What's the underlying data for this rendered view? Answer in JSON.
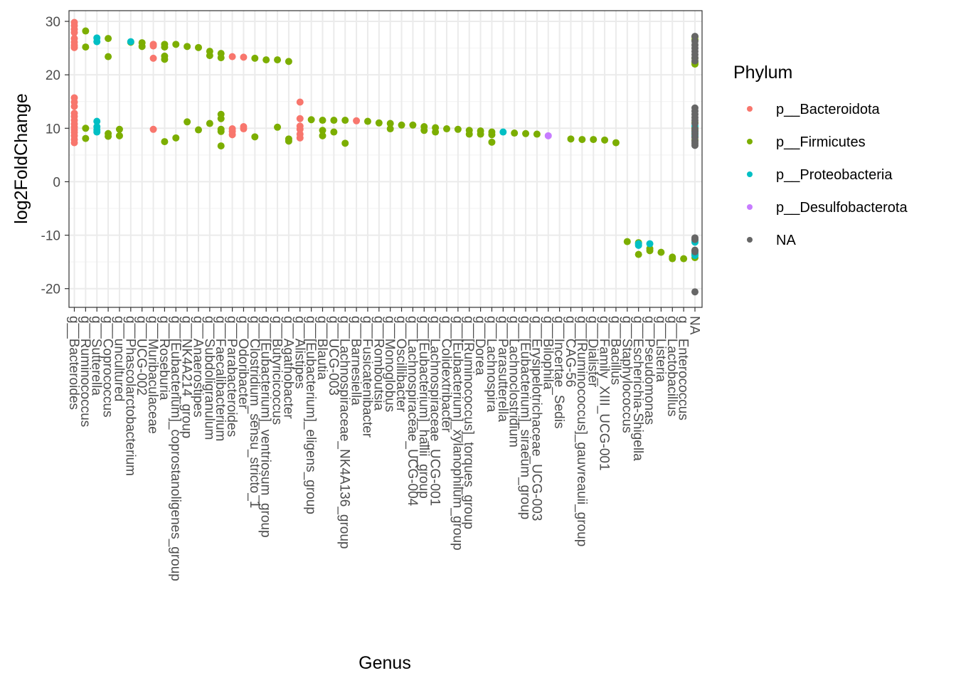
{
  "chart_data": {
    "type": "scatter",
    "xlabel": "Genus",
    "ylabel": "log2FoldChange",
    "ylim": [
      -23.5,
      32
    ],
    "y_ticks": [
      -20,
      -10,
      0,
      10,
      20,
      30
    ],
    "y_tick_labels": [
      "-20",
      "-10",
      "0",
      "10",
      "20",
      "30"
    ],
    "grid": true,
    "legend": {
      "title": "Phylum",
      "position": "right",
      "entries": [
        {
          "label": "p__Bacteroidota",
          "color": "#F8766D"
        },
        {
          "label": "p__Firmicutes",
          "color": "#7CAE00"
        },
        {
          "label": "p__Proteobacteria",
          "color": "#00BFC4"
        },
        {
          "label": "p__Desulfobacterota",
          "color": "#C77CFF"
        },
        {
          "label": "NA",
          "color": "#666666"
        }
      ]
    },
    "categories": [
      "g__Bacteroides",
      "g__Ruminococcus",
      "g__Sutterella",
      "g__Coprococcus",
      "g__uncultured",
      "g__Phascolarctobacterium",
      "g__UCG-002",
      "g__Muribaculaceae",
      "g__Roseburia",
      "g__[Eubacterium]_coprostanoligenes_group",
      "g__NK4A214_group",
      "g__Anaerostipes",
      "g__Subdoligranulum",
      "g__Faecalibacterium",
      "g__Parabacteroides",
      "g__Odoribacter",
      "g__Clostridium_sensu_stricto_1",
      "g__[Eubacterium]_ventriosum_group",
      "g__Butyricicoccus",
      "g__Agathobacter",
      "g__Alistipes",
      "g__[Eubacterium]_eligens_group",
      "g__Blautia",
      "g__UCG-003",
      "g__Lachnospiraceae_NK4A136_group",
      "g__Barnesiella",
      "g__Fusicatenibacter",
      "g__Romboutsia",
      "g__Monoglobus",
      "g__Oscillibacter",
      "g__Lachnospiraceae_UCG-004",
      "g__[Eubacterium]_hallii_group",
      "g__Lachnospiraceae_UCG-001",
      "g__Colidextribacter",
      "g__[Eubacterium]_xylanophilum_group",
      "g__[Ruminococcus]_torques_group",
      "g__Dorea",
      "g__Lachnospira",
      "g__Parasutterella",
      "g__Lachnoclostridium",
      "g__[Eubacterium]_siraeum_group",
      "g__Erysipelotrichaceae_UCG-003",
      "g__Bilophila",
      "g__Incertae_Sedis",
      "g__CAG-56",
      "g__[Ruminococcus]_gauvreauii_group",
      "g__Dialister",
      "g__Family_XIII_UCG-001",
      "g__Bacillus",
      "g__Staphylococcus",
      "g__Escherichia-Shigella",
      "g__Pseudomonas",
      "g__Listeria",
      "g__Lactobacillus",
      "g__Enterococcus",
      "NA"
    ],
    "series": [
      {
        "name": "p__Bacteroidota",
        "points": [
          {
            "x": "g__Bacteroides",
            "y": [
              29.8,
              29.2,
              28.5,
              27.9,
              26.8,
              26.1,
              25.5,
              25.1,
              15.7,
              14.9,
              14.1,
              12.8,
              12.2,
              11.5,
              10.8,
              10.2,
              9.7,
              9.2,
              8.6,
              7.9,
              7.3
            ]
          },
          {
            "x": "g__Muribaculaceae",
            "y": [
              25.7,
              25.4,
              23.1,
              9.8
            ]
          },
          {
            "x": "g__Parabacteroides",
            "y": [
              23.4,
              9.9,
              9.4,
              8.8
            ]
          },
          {
            "x": "g__Odoribacter",
            "y": [
              23.3,
              10.3,
              9.9
            ]
          },
          {
            "x": "g__Alistipes",
            "y": [
              14.9,
              11.8,
              10.4,
              9.8,
              8.9,
              8.2
            ]
          },
          {
            "x": "g__Barnesiella",
            "y": [
              11.4
            ]
          }
        ]
      },
      {
        "name": "p__Firmicutes",
        "points": [
          {
            "x": "g__Ruminococcus",
            "y": [
              28.2,
              25.2,
              10.0,
              8.1
            ]
          },
          {
            "x": "g__Coprococcus",
            "y": [
              26.8,
              23.4,
              9.0,
              8.5
            ]
          },
          {
            "x": "g__uncultured",
            "y": [
              9.8,
              8.6
            ]
          },
          {
            "x": "g__Phascolarctobacterium",
            "y": [
              26.1
            ]
          },
          {
            "x": "g__UCG-002",
            "y": [
              26.0,
              25.3
            ]
          },
          {
            "x": "g__Roseburia",
            "y": [
              25.7,
              25.2,
              23.5,
              22.9,
              7.5
            ]
          },
          {
            "x": "g__[Eubacterium]_coprostanoligenes_group",
            "y": [
              25.7,
              8.2
            ]
          },
          {
            "x": "g__NK4A214_group",
            "y": [
              25.3,
              11.2
            ]
          },
          {
            "x": "g__Anaerostipes",
            "y": [
              25.1,
              9.7
            ]
          },
          {
            "x": "g__Subdoligranulum",
            "y": [
              24.4,
              23.6,
              10.9
            ]
          },
          {
            "x": "g__Faecalibacterium",
            "y": [
              24.0,
              23.2,
              12.6,
              11.8,
              9.8,
              9.4,
              6.7
            ]
          },
          {
            "x": "g__Clostridium_sensu_stricto_1",
            "y": [
              23.1,
              8.4
            ]
          },
          {
            "x": "g__[Eubacterium]_ventriosum_group",
            "y": [
              22.8
            ]
          },
          {
            "x": "g__Butyricicoccus",
            "y": [
              22.8,
              10.2
            ]
          },
          {
            "x": "g__Agathobacter",
            "y": [
              22.5,
              8.0,
              7.6
            ]
          },
          {
            "x": "g__[Eubacterium]_eligens_group",
            "y": [
              11.6
            ]
          },
          {
            "x": "g__Blautia",
            "y": [
              11.5,
              9.6,
              8.6
            ]
          },
          {
            "x": "g__UCG-003",
            "y": [
              11.5,
              9.3
            ]
          },
          {
            "x": "g__Lachnospiraceae_NK4A136_group",
            "y": [
              11.5,
              7.2
            ]
          },
          {
            "x": "g__Fusicatenibacter",
            "y": [
              11.3
            ]
          },
          {
            "x": "g__Romboutsia",
            "y": [
              11.0
            ]
          },
          {
            "x": "g__Monoglobus",
            "y": [
              10.9,
              9.9
            ]
          },
          {
            "x": "g__Oscillibacter",
            "y": [
              10.6
            ]
          },
          {
            "x": "g__Lachnospiraceae_UCG-004",
            "y": [
              10.6
            ]
          },
          {
            "x": "g__[Eubacterium]_hallii_group",
            "y": [
              10.3,
              9.6
            ]
          },
          {
            "x": "g__Lachnospiraceae_UCG-001",
            "y": [
              10.1,
              9.3
            ]
          },
          {
            "x": "g__Colidextribacter",
            "y": [
              9.9
            ]
          },
          {
            "x": "g__[Eubacterium]_xylanophilum_group",
            "y": [
              9.8
            ]
          },
          {
            "x": "g__[Ruminococcus]_torques_group",
            "y": [
              9.6,
              8.9
            ]
          },
          {
            "x": "g__Dorea",
            "y": [
              9.5,
              8.9
            ]
          },
          {
            "x": "g__Lachnospira",
            "y": [
              9.3,
              8.8,
              7.4
            ]
          },
          {
            "x": "g__Lachnoclostridium",
            "y": [
              9.1
            ]
          },
          {
            "x": "g__[Eubacterium]_siraeum_group",
            "y": [
              9.0
            ]
          },
          {
            "x": "g__Erysipelotrichaceae_UCG-003",
            "y": [
              8.9
            ]
          },
          {
            "x": "g__CAG-56",
            "y": [
              8.0
            ]
          },
          {
            "x": "g__[Ruminococcus]_gauvreauii_group",
            "y": [
              7.9
            ]
          },
          {
            "x": "g__Dialister",
            "y": [
              7.9
            ]
          },
          {
            "x": "g__Family_XIII_UCG-001",
            "y": [
              7.8
            ]
          },
          {
            "x": "g__Bacillus",
            "y": [
              7.3
            ]
          },
          {
            "x": "g__Staphylococcus",
            "y": [
              -11.2
            ]
          },
          {
            "x": "g__Escherichia-Shigella",
            "y": [
              -11.4,
              -13.6
            ]
          },
          {
            "x": "g__Pseudomonas",
            "y": [
              -12.5,
              -12.9
            ]
          },
          {
            "x": "g__Listeria",
            "y": [
              -13.2
            ]
          },
          {
            "x": "g__Lactobacillus",
            "y": [
              -14.1,
              -14.4
            ]
          },
          {
            "x": "g__Enterococcus",
            "y": [
              -14.4
            ]
          },
          {
            "x": "NA",
            "y": [
              27.1,
              26.6,
              23.1,
              22.3,
              22.0,
              11.1,
              10.1,
              9.6,
              9.0,
              8.4,
              7.8,
              -13.6,
              -14.2
            ]
          }
        ]
      },
      {
        "name": "p__Proteobacteria",
        "points": [
          {
            "x": "g__Sutterella",
            "y": [
              26.9,
              26.2,
              11.3,
              10.3,
              9.7,
              9.3
            ]
          },
          {
            "x": "g__Phascolarctobacterium",
            "y": [
              26.2
            ]
          },
          {
            "x": "g__Parasutterella",
            "y": [
              9.3
            ]
          },
          {
            "x": "g__Escherichia-Shigella",
            "y": [
              -11.6,
              -11.9
            ]
          },
          {
            "x": "g__Pseudomonas",
            "y": [
              -11.6
            ]
          },
          {
            "x": "NA",
            "y": [
              10.4,
              9.3,
              8.6,
              -10.9,
              -11.3,
              -12.9,
              -13.4,
              -13.8
            ]
          }
        ]
      },
      {
        "name": "p__Desulfobacterota",
        "points": [
          {
            "x": "g__Bilophila",
            "y": [
              8.6
            ]
          }
        ]
      },
      {
        "name": "NA",
        "points": [
          {
            "x": "NA",
            "y": [
              27.2,
              26.3,
              25.6,
              25.0,
              24.4,
              23.8,
              23.2,
              22.6,
              13.8,
              13.2,
              12.6,
              12.0,
              11.5,
              10.9,
              9.9,
              9.4,
              8.9,
              8.3,
              7.6,
              7.2,
              6.8,
              -10.5,
              -10.8,
              -12.8,
              -13.1,
              -20.6
            ]
          }
        ]
      }
    ]
  }
}
